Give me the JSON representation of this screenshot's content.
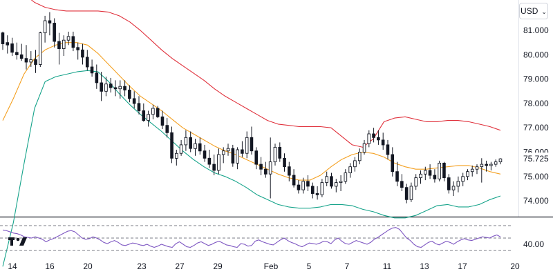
{
  "currency_selector": {
    "label": "USD",
    "chevron": "chevron-down-icon"
  },
  "logo": {
    "icon": "tradingview-logo-icon",
    "text": "TV"
  },
  "colors": {
    "candle": "#131722",
    "bb_upper": "#e0303b",
    "bb_middle": "#f4a021",
    "bb_lower": "#15a38a",
    "rsi_line": "#7e57c2",
    "divider": "#131722",
    "dashed": "#787b86"
  },
  "chart_data": [
    {
      "type": "candlestick",
      "title": "",
      "y_axis_side": "right",
      "ylim": [
        73.35,
        82.25
      ],
      "y_ticks": [
        "81.000",
        "80.000",
        "79.000",
        "78.000",
        "77.000",
        "76.000",
        "75.000",
        "74.000"
      ],
      "last_value": "75.725",
      "x_ticks": [
        "14",
        "16",
        "20",
        "23",
        "27",
        "29",
        "Feb",
        "5",
        "7",
        "11",
        "13",
        "17",
        "20"
      ],
      "grid": false,
      "legend": "none",
      "candles_ohlc": [
        [
          80.9,
          80.95,
          80.2,
          80.45
        ],
        [
          80.5,
          80.8,
          80.05,
          80.4
        ],
        [
          80.45,
          80.7,
          79.95,
          80.1
        ],
        [
          80.1,
          80.5,
          79.8,
          80.0
        ],
        [
          80.0,
          80.45,
          79.75,
          79.85
        ],
        [
          79.85,
          80.4,
          79.4,
          79.7
        ],
        [
          79.7,
          80.15,
          79.5,
          79.8
        ],
        [
          79.8,
          80.2,
          79.25,
          79.6
        ],
        [
          79.6,
          80.95,
          79.5,
          80.9
        ],
        [
          80.9,
          81.6,
          80.5,
          81.4
        ],
        [
          81.4,
          81.75,
          80.8,
          81.3
        ],
        [
          81.3,
          81.5,
          80.3,
          80.55
        ],
        [
          80.55,
          80.9,
          79.6,
          80.25
        ],
        [
          80.25,
          80.8,
          79.95,
          80.6
        ],
        [
          80.6,
          80.95,
          80.4,
          80.75
        ],
        [
          80.75,
          80.95,
          80.15,
          80.3
        ],
        [
          80.3,
          80.5,
          79.8,
          80.2
        ],
        [
          80.2,
          80.45,
          79.6,
          79.9
        ],
        [
          79.9,
          80.2,
          79.35,
          79.5
        ],
        [
          79.5,
          79.8,
          79.1,
          79.25
        ],
        [
          79.25,
          79.6,
          78.6,
          78.85
        ],
        [
          78.85,
          79.3,
          78.1,
          78.5
        ],
        [
          78.5,
          79.1,
          78.3,
          78.8
        ],
        [
          78.8,
          79.05,
          78.45,
          78.65
        ],
        [
          78.65,
          78.95,
          78.3,
          78.6
        ],
        [
          78.6,
          78.95,
          78.2,
          78.7
        ],
        [
          78.7,
          78.95,
          78.3,
          78.55
        ],
        [
          78.55,
          78.75,
          78.05,
          78.2
        ],
        [
          78.2,
          78.5,
          77.8,
          78.0
        ],
        [
          78.0,
          78.3,
          77.55,
          77.7
        ],
        [
          77.7,
          78.0,
          77.25,
          77.3
        ],
        [
          77.3,
          77.7,
          77.05,
          77.55
        ],
        [
          77.55,
          77.95,
          77.35,
          77.8
        ],
        [
          77.8,
          77.9,
          77.4,
          77.45
        ],
        [
          77.45,
          77.7,
          76.95,
          77.1
        ],
        [
          77.1,
          77.4,
          76.6,
          76.8
        ],
        [
          76.8,
          77.05,
          75.55,
          75.75
        ],
        [
          75.75,
          76.1,
          75.45,
          75.95
        ],
        [
          75.95,
          76.5,
          75.85,
          76.3
        ],
        [
          76.3,
          76.9,
          76.05,
          76.6
        ],
        [
          76.6,
          76.85,
          76.0,
          76.15
        ],
        [
          76.15,
          76.55,
          75.85,
          76.35
        ],
        [
          76.35,
          76.6,
          75.9,
          76.05
        ],
        [
          76.05,
          76.3,
          75.6,
          75.75
        ],
        [
          75.75,
          76.1,
          75.35,
          75.5
        ],
        [
          75.5,
          75.9,
          75.05,
          75.25
        ],
        [
          75.25,
          76.15,
          75.1,
          75.9
        ],
        [
          75.9,
          76.2,
          75.55,
          76.05
        ],
        [
          76.05,
          76.35,
          75.85,
          76.15
        ],
        [
          76.15,
          76.3,
          75.4,
          75.55
        ],
        [
          75.55,
          76.2,
          75.3,
          76.1
        ],
        [
          76.1,
          76.45,
          75.8,
          75.95
        ],
        [
          75.95,
          76.85,
          75.75,
          76.6
        ],
        [
          76.6,
          77.05,
          75.9,
          76.05
        ],
        [
          76.05,
          76.2,
          75.3,
          75.5
        ],
        [
          75.5,
          75.8,
          75.05,
          75.3
        ],
        [
          75.3,
          75.6,
          74.95,
          75.1
        ],
        [
          75.1,
          76.6,
          74.1,
          75.6
        ],
        [
          75.6,
          76.35,
          75.45,
          76.2
        ],
        [
          76.2,
          76.4,
          75.6,
          75.75
        ],
        [
          75.75,
          75.95,
          75.2,
          75.4
        ],
        [
          75.4,
          75.6,
          74.8,
          75.05
        ],
        [
          75.05,
          75.3,
          74.55,
          74.65
        ],
        [
          74.65,
          74.85,
          74.3,
          74.45
        ],
        [
          74.45,
          74.95,
          74.3,
          74.8
        ],
        [
          74.8,
          75.05,
          74.4,
          74.6
        ],
        [
          74.6,
          74.75,
          74.1,
          74.3
        ],
        [
          74.3,
          74.6,
          74.05,
          74.25
        ],
        [
          74.25,
          74.9,
          74.15,
          74.75
        ],
        [
          74.75,
          75.2,
          74.6,
          75.0
        ],
        [
          75.0,
          75.15,
          74.5,
          74.6
        ],
        [
          74.6,
          74.9,
          74.35,
          74.75
        ],
        [
          74.75,
          75.05,
          74.4,
          74.8
        ],
        [
          74.8,
          75.3,
          74.7,
          75.15
        ],
        [
          75.15,
          75.55,
          74.95,
          75.4
        ],
        [
          75.4,
          75.8,
          75.2,
          75.65
        ],
        [
          75.65,
          76.15,
          75.5,
          76.0
        ],
        [
          76.0,
          76.5,
          75.9,
          76.35
        ],
        [
          76.35,
          76.9,
          76.2,
          76.75
        ],
        [
          76.75,
          77.0,
          76.4,
          76.6
        ],
        [
          76.6,
          76.9,
          76.3,
          76.5
        ],
        [
          76.5,
          76.8,
          76.1,
          76.3
        ],
        [
          76.3,
          76.5,
          75.7,
          75.9
        ],
        [
          75.9,
          76.2,
          75.0,
          75.2
        ],
        [
          75.2,
          75.6,
          74.6,
          74.8
        ],
        [
          74.8,
          75.1,
          74.4,
          74.55
        ],
        [
          74.55,
          74.7,
          73.9,
          74.05
        ],
        [
          74.05,
          74.75,
          73.95,
          74.6
        ],
        [
          74.6,
          75.1,
          74.45,
          74.95
        ],
        [
          74.95,
          75.25,
          74.7,
          75.1
        ],
        [
          75.1,
          75.4,
          74.85,
          75.25
        ],
        [
          75.25,
          75.5,
          74.9,
          75.05
        ],
        [
          75.05,
          75.3,
          74.75,
          74.9
        ],
        [
          74.9,
          75.65,
          74.8,
          75.55
        ],
        [
          75.55,
          75.6,
          74.8,
          74.95
        ],
        [
          74.95,
          75.1,
          74.3,
          74.45
        ],
        [
          74.45,
          74.8,
          74.2,
          74.6
        ],
        [
          74.6,
          75.0,
          74.35,
          74.8
        ],
        [
          74.8,
          75.15,
          74.6,
          75.0
        ],
        [
          75.0,
          75.3,
          74.85,
          75.2
        ],
        [
          75.2,
          75.45,
          75.0,
          75.3
        ],
        [
          75.3,
          75.5,
          75.1,
          75.4
        ],
        [
          75.4,
          75.75,
          74.75,
          75.5
        ],
        [
          75.5,
          75.65,
          75.2,
          75.45
        ],
        [
          75.45,
          75.6,
          75.25,
          75.5
        ],
        [
          75.5,
          75.7,
          75.4,
          75.6
        ],
        [
          75.6,
          75.75,
          75.5,
          75.725
        ]
      ],
      "bb_upper": [
        83.3,
        82.95,
        82.5,
        82.15,
        81.95,
        81.85,
        81.8,
        81.8,
        81.8,
        81.8,
        81.75,
        81.6,
        81.35,
        81.0,
        80.6,
        80.2,
        79.85,
        79.55,
        79.25,
        78.95,
        78.6,
        78.3,
        78.05,
        77.8,
        77.55,
        77.3,
        77.15,
        77.1,
        77.05,
        77.05,
        77.05,
        77.0,
        76.65,
        76.3,
        76.2,
        76.55,
        77.25,
        77.4,
        77.45,
        77.35,
        77.25,
        77.25,
        77.3,
        77.3,
        77.25,
        77.15,
        77.05,
        76.9
      ],
      "bb_middle": [
        77.3,
        78.2,
        79.2,
        79.85,
        80.2,
        80.4,
        80.5,
        80.5,
        80.4,
        80.05,
        79.6,
        79.15,
        78.7,
        78.3,
        78.0,
        77.7,
        77.35,
        77.0,
        76.75,
        76.5,
        76.25,
        76.05,
        75.9,
        75.7,
        75.5,
        75.3,
        75.1,
        74.95,
        74.85,
        74.85,
        75.05,
        75.4,
        75.7,
        75.9,
        76.0,
        75.95,
        75.8,
        75.55,
        75.4,
        75.3,
        75.3,
        75.35,
        75.4,
        75.45,
        75.45,
        75.35,
        75.2,
        75.1
      ],
      "bb_lower": [
        71.3,
        73.1,
        75.5,
        77.8,
        78.9,
        79.1,
        79.2,
        79.3,
        79.35,
        79.3,
        78.9,
        78.4,
        77.95,
        77.55,
        77.2,
        76.85,
        76.45,
        76.05,
        75.7,
        75.4,
        75.15,
        75.0,
        74.8,
        74.55,
        74.25,
        74.05,
        73.85,
        73.75,
        73.7,
        73.7,
        73.75,
        73.85,
        73.85,
        73.8,
        73.65,
        73.55,
        73.4,
        73.3,
        73.3,
        73.4,
        73.6,
        73.8,
        73.85,
        73.75,
        73.75,
        73.85,
        74.05,
        74.2
      ]
    },
    {
      "type": "line",
      "title": "",
      "y_ticks": [
        "40.00"
      ],
      "ylim": [
        20,
        80
      ],
      "reference_levels": [
        70,
        50,
        30
      ],
      "legend": "none",
      "rsi": [
        63,
        62,
        60,
        58,
        57,
        55,
        52,
        51,
        50,
        52,
        50,
        48,
        44,
        47,
        49,
        52,
        55,
        58,
        61,
        62,
        60,
        55,
        50,
        48,
        49,
        52,
        50,
        47,
        43,
        41,
        44,
        46,
        43,
        39,
        38,
        40,
        42,
        41,
        39,
        38,
        40,
        37,
        35,
        37,
        40,
        38,
        36,
        35,
        41,
        44,
        40,
        36,
        35,
        38,
        42,
        44,
        41,
        38,
        40,
        43,
        45,
        42,
        39,
        38,
        36,
        35,
        41,
        40,
        37,
        38,
        45,
        47,
        44,
        42,
        40,
        39,
        43,
        47,
        50,
        46,
        43,
        41,
        38,
        36,
        39,
        42,
        41,
        40,
        42,
        45,
        44,
        41,
        47,
        50,
        45,
        41,
        40,
        43,
        46,
        44,
        42,
        40,
        43,
        48,
        51,
        55,
        59,
        63,
        66,
        67,
        64,
        57,
        50,
        46,
        40,
        36,
        35,
        39,
        43,
        45,
        41,
        39,
        42,
        45,
        43,
        40,
        44,
        47,
        49,
        47,
        46,
        48,
        50,
        52,
        51,
        50,
        53,
        55,
        52
      ]
    }
  ]
}
